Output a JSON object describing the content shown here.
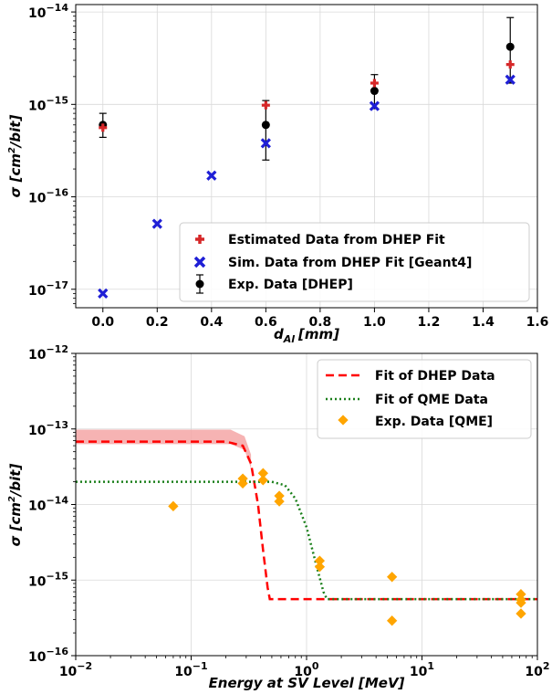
{
  "chart_data": [
    {
      "type": "scatter",
      "xlabel": "d_Al [mm]",
      "xlabel_main": "d",
      "xlabel_sub": "Al",
      "xlabel_unit": "[mm]",
      "ylabel": "σ [cm²/bit]",
      "ylabel_main": "σ [cm",
      "ylabel_sup": "2",
      "ylabel_unit": "/bit]",
      "xlim": [
        -0.1,
        1.6
      ],
      "ylim_log10": [
        -17.2,
        -13.92
      ],
      "yscale": "log",
      "grid": true,
      "legend_placement": "lower-right",
      "x_ticks": [
        {
          "v": 0.0,
          "label": "0.0"
        },
        {
          "v": 0.2,
          "label": "0.2"
        },
        {
          "v": 0.4,
          "label": "0.4"
        },
        {
          "v": 0.6,
          "label": "0.6"
        },
        {
          "v": 0.8,
          "label": "0.8"
        },
        {
          "v": 1.0,
          "label": "1.0"
        },
        {
          "v": 1.2,
          "label": "1.2"
        },
        {
          "v": 1.4,
          "label": "1.4"
        },
        {
          "v": 1.6,
          "label": "1.6"
        }
      ],
      "y_ticks": [
        {
          "e": -17,
          "base": "10",
          "exp": "−17"
        },
        {
          "e": -16,
          "base": "10",
          "exp": "−16"
        },
        {
          "e": -15,
          "base": "10",
          "exp": "−15"
        },
        {
          "e": -14,
          "base": "10",
          "exp": "−14"
        }
      ],
      "series": [
        {
          "name": "Estimated Data from DHEP Fit",
          "marker": "plus",
          "color": "#d62728",
          "points": [
            [
              0.0,
              5.6e-16
            ],
            [
              0.6,
              9.8e-16
            ],
            [
              1.0,
              1.7e-15
            ],
            [
              1.5,
              2.7e-15
            ]
          ]
        },
        {
          "name": "Sim. Data from DHEP Fit [Geant4]",
          "marker": "x",
          "color": "#1f1fd6",
          "points": [
            [
              0.0,
              9e-18
            ],
            [
              0.2,
              5.1e-17
            ],
            [
              0.4,
              1.7e-16
            ],
            [
              0.6,
              3.8e-16
            ],
            [
              1.0,
              9.6e-16
            ],
            [
              1.5,
              1.85e-15
            ]
          ]
        },
        {
          "name": "Exp. Data [DHEP]",
          "marker": "dot-errorbar",
          "color": "#000000",
          "points": [
            {
              "x": 0.0,
              "y": 6e-16,
              "lo": 4.4e-16,
              "hi": 8e-16
            },
            {
              "x": 0.6,
              "y": 6e-16,
              "lo": 2.5e-16,
              "hi": 1.1e-15
            },
            {
              "x": 1.0,
              "y": 1.4e-15,
              "lo": 9e-16,
              "hi": 2.1e-15
            },
            {
              "x": 1.5,
              "y": 4.2e-15,
              "lo": 1.7e-15,
              "hi": 8.7e-15
            }
          ]
        }
      ]
    },
    {
      "type": "line",
      "xlabel": "Energy at SV Level [MeV]",
      "ylabel": "σ [cm²/bit]",
      "ylabel_main": "σ [cm",
      "ylabel_sup": "2",
      "ylabel_unit": "/bit]",
      "xscale": "log",
      "yscale": "log",
      "xlim": [
        0.01,
        100
      ],
      "ylim": [
        1e-16,
        1e-12
      ],
      "grid": true,
      "legend_placement": "top-right",
      "x_ticks": [
        {
          "e": -2,
          "base": "10",
          "exp": "−2"
        },
        {
          "e": -1,
          "base": "10",
          "exp": "−1"
        },
        {
          "e": 0,
          "base": "10",
          "exp": "0"
        },
        {
          "e": 1,
          "base": "10",
          "exp": "1"
        },
        {
          "e": 2,
          "base": "10",
          "exp": "2"
        }
      ],
      "y_ticks": [
        {
          "e": -16,
          "base": "10",
          "exp": "−16"
        },
        {
          "e": -15,
          "base": "10",
          "exp": "−15"
        },
        {
          "e": -14,
          "base": "10",
          "exp": "−14"
        },
        {
          "e": -13,
          "base": "10",
          "exp": "−13"
        },
        {
          "e": -12,
          "base": "10",
          "exp": "−12"
        }
      ],
      "series": [
        {
          "name": " Fit of DHEP Data",
          "style": "dashed",
          "color": "#ff0000",
          "curve": [
            [
              0.01,
              6.8e-14
            ],
            [
              0.2,
              6.8e-14
            ],
            [
              0.28,
              6e-14
            ],
            [
              0.33,
              3.5e-14
            ],
            [
              0.38,
              1e-14
            ],
            [
              0.42,
              2.5e-15
            ],
            [
              0.46,
              8e-16
            ],
            [
              0.48,
              5.6e-16
            ],
            [
              100,
              5.6e-16
            ]
          ],
          "band_upper": [
            [
              0.01,
              9.8e-14
            ],
            [
              0.22,
              9.8e-14
            ],
            [
              0.29,
              8e-14
            ],
            [
              0.33,
              4.6e-14
            ]
          ],
          "band_lower": [
            [
              0.01,
              6.3e-14
            ],
            [
              0.22,
              6.3e-14
            ],
            [
              0.29,
              5.3e-14
            ],
            [
              0.33,
              3e-14
            ]
          ],
          "band_color": "#f4a6a6"
        },
        {
          "name": "Fit of QME Data",
          "style": "dotted",
          "color": "#1a7f1a",
          "curve": [
            [
              0.01,
              2e-14
            ],
            [
              0.5,
              2e-14
            ],
            [
              0.65,
              1.8e-14
            ],
            [
              0.8,
              1.2e-14
            ],
            [
              1.0,
              5e-15
            ],
            [
              1.2,
              1.7e-15
            ],
            [
              1.4,
              7e-16
            ],
            [
              1.5,
              5.6e-16
            ],
            [
              100,
              5.6e-16
            ]
          ]
        },
        {
          "name": "Exp. Data [QME]",
          "marker": "diamond",
          "color": "#ffa500",
          "points": [
            [
              0.07,
              9.5e-15
            ],
            [
              0.28,
              1.9e-14
            ],
            [
              0.28,
              2.2e-14
            ],
            [
              0.42,
              2.1e-14
            ],
            [
              0.42,
              2.6e-14
            ],
            [
              0.58,
              1.1e-14
            ],
            [
              0.58,
              1.3e-14
            ],
            [
              1.3,
              1.5e-15
            ],
            [
              1.3,
              1.8e-15
            ],
            [
              5.5,
              1.1e-15
            ],
            [
              5.5,
              2.9e-16
            ],
            [
              72,
              6.5e-16
            ],
            [
              72,
              5.5e-16
            ],
            [
              72,
              5e-16
            ],
            [
              72,
              3.6e-16
            ]
          ]
        }
      ]
    }
  ]
}
